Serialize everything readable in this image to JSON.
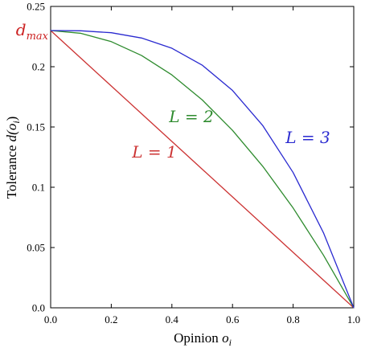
{
  "chart_data": {
    "type": "line",
    "xlabel": "Opinion o_i",
    "xlabel_main": "Opinion ",
    "xlabel_var": "o",
    "xlabel_sub": "i",
    "ylabel": "Tolerance d(o_i)",
    "ylabel_main": "Tolerance ",
    "ylabel_fn": "d(",
    "ylabel_var": "o",
    "ylabel_sub": "i",
    "ylabel_close": ")",
    "xlim": [
      0.0,
      1.0
    ],
    "ylim": [
      0.0,
      0.25
    ],
    "x_ticks": [
      "0.0",
      "0.2",
      "0.4",
      "0.6",
      "0.8",
      "1.0"
    ],
    "y_ticks": [
      "0.0",
      "0.05",
      "0.1",
      "0.15",
      "0.2",
      "0.25"
    ],
    "dmax_value": 0.23,
    "dmax_label_main": "d",
    "dmax_label_sub": "max",
    "grid": false,
    "series": [
      {
        "name": "L = 1",
        "color": "#cc3333",
        "x": [
          0.0,
          0.1,
          0.2,
          0.3,
          0.4,
          0.5,
          0.6,
          0.7,
          0.8,
          0.9,
          1.0
        ],
        "y": [
          0.23,
          0.207,
          0.184,
          0.161,
          0.138,
          0.115,
          0.092,
          0.069,
          0.046,
          0.023,
          0.0
        ]
      },
      {
        "name": "L = 2",
        "color": "#2e8b2e",
        "x": [
          0.0,
          0.1,
          0.2,
          0.3,
          0.4,
          0.5,
          0.6,
          0.7,
          0.8,
          0.9,
          1.0
        ],
        "y": [
          0.23,
          0.2277,
          0.2208,
          0.2093,
          0.1932,
          0.1725,
          0.1472,
          0.1173,
          0.0828,
          0.0437,
          0.0
        ]
      },
      {
        "name": "L = 3",
        "color": "#2a2ad0",
        "x": [
          0.0,
          0.1,
          0.2,
          0.3,
          0.4,
          0.5,
          0.6,
          0.7,
          0.8,
          0.9,
          1.0
        ],
        "y": [
          0.23,
          0.2298,
          0.2282,
          0.2238,
          0.2153,
          0.2013,
          0.1803,
          0.1511,
          0.1122,
          0.0623,
          0.0
        ]
      }
    ],
    "annotations": [
      {
        "text": "L = 1",
        "series": 0
      },
      {
        "text": "L = 2",
        "series": 1
      },
      {
        "text": "L = 3",
        "series": 2
      }
    ]
  }
}
